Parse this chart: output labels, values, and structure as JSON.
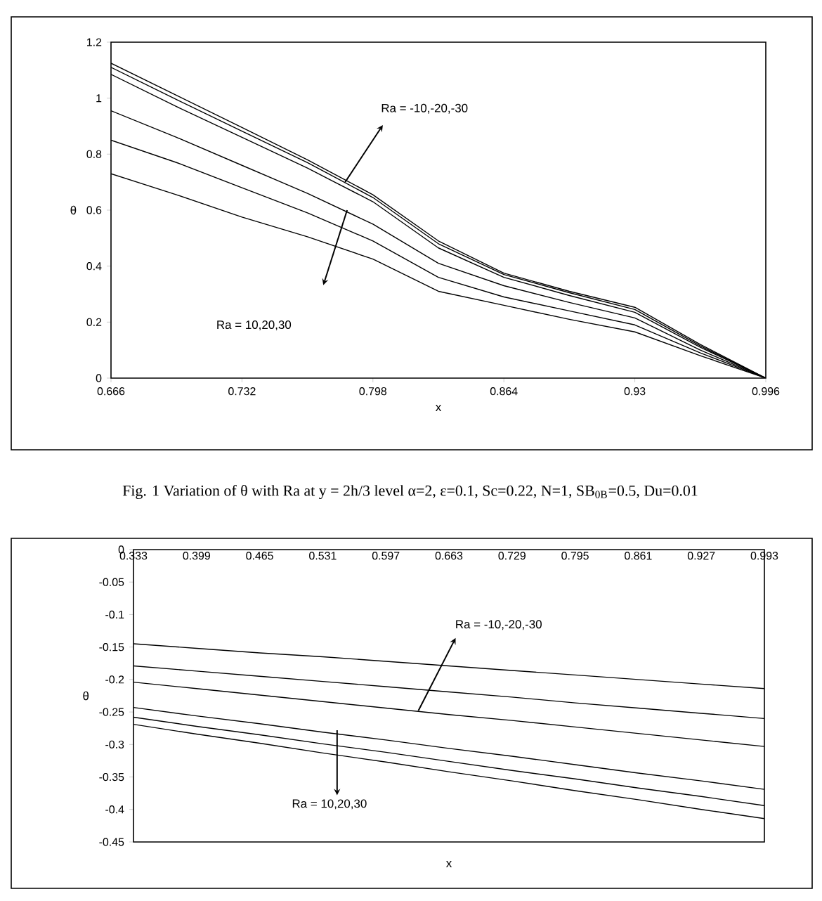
{
  "chart_data": [
    {
      "type": "line",
      "xlabel": "x",
      "ylabel": "θ",
      "x": [
        0.666,
        0.699,
        0.732,
        0.765,
        0.798,
        0.831,
        0.864,
        0.897,
        0.93,
        0.963,
        0.996
      ],
      "xlim": [
        0.666,
        0.996
      ],
      "xticks": [
        0.666,
        0.732,
        0.798,
        0.864,
        0.93,
        0.996
      ],
      "ylim": [
        0,
        1.2
      ],
      "yticks": [
        0,
        0.2,
        0.4,
        0.6,
        0.8,
        1,
        1.2
      ],
      "series": [
        {
          "color": "#000000",
          "values": [
            1.125,
            1.01,
            0.895,
            0.78,
            0.655,
            0.49,
            0.375,
            0.31,
            0.253,
            0.12,
            0
          ]
        },
        {
          "color": "#000000",
          "values": [
            1.11,
            0.995,
            0.882,
            0.77,
            0.645,
            0.48,
            0.37,
            0.305,
            0.245,
            0.115,
            0
          ]
        },
        {
          "color": "#000000",
          "values": [
            1.085,
            0.97,
            0.86,
            0.75,
            0.63,
            0.465,
            0.36,
            0.295,
            0.235,
            0.11,
            0
          ]
        },
        {
          "color": "#000000",
          "values": [
            0.955,
            0.86,
            0.76,
            0.66,
            0.55,
            0.41,
            0.33,
            0.27,
            0.215,
            0.1,
            0
          ]
        },
        {
          "color": "#000000",
          "values": [
            0.85,
            0.77,
            0.68,
            0.59,
            0.49,
            0.36,
            0.29,
            0.24,
            0.19,
            0.09,
            0
          ]
        },
        {
          "color": "#000000",
          "values": [
            0.73,
            0.655,
            0.575,
            0.505,
            0.425,
            0.31,
            0.26,
            0.21,
            0.165,
            0.08,
            0
          ]
        }
      ],
      "annotations": [
        "Fig. 1 Variation of θ with Ra at y = 2h/3 level α=2, ε=0.1, Sc=0.22, N=1, SB$_{0B}$=0.5, Du=0.01",
        {
          "text": "Ra = -10,-20,-30",
          "x": 0.784,
          "y": 0.7
        },
        "Ra = 10,20,30"
      ]
    },
    {
      "type": "line",
      "xlabel": "x",
      "ylabel": "θ",
      "x": [
        0.333,
        0.399,
        0.465,
        0.531,
        0.597,
        0.663,
        0.729,
        0.795,
        0.861,
        0.927,
        0.993
      ],
      "xlim": [
        0.333,
        0.993
      ],
      "xticks": [
        0.333,
        0.399,
        0.465,
        0.531,
        0.597,
        0.663,
        0.729,
        0.795,
        0.861,
        0.927,
        0.993
      ],
      "ylim": [
        -0.45,
        0
      ],
      "yticks": [
        -0.45,
        -0.4,
        -0.35,
        -0.3,
        -0.25,
        -0.2,
        -0.15,
        -0.1,
        -0.05,
        0
      ],
      "series": [
        {
          "color": "#000000",
          "values": [
            -0.145,
            -0.152,
            -0.159,
            -0.165,
            -0.172,
            -0.179,
            -0.186,
            -0.193,
            -0.2,
            -0.207,
            -0.214
          ]
        },
        {
          "color": "#000000",
          "values": [
            -0.179,
            -0.187,
            -0.195,
            -0.203,
            -0.211,
            -0.219,
            -0.227,
            -0.236,
            -0.244,
            -0.252,
            -0.26
          ]
        },
        {
          "color": "#000000",
          "values": [
            -0.204,
            -0.214,
            -0.224,
            -0.234,
            -0.244,
            -0.254,
            -0.263,
            -0.273,
            -0.283,
            -0.293,
            -0.303
          ]
        },
        {
          "color": "#000000",
          "values": [
            -0.243,
            -0.256,
            -0.268,
            -0.281,
            -0.293,
            -0.306,
            -0.318,
            -0.331,
            -0.344,
            -0.356,
            -0.369
          ]
        },
        {
          "color": "#000000",
          "values": [
            -0.258,
            -0.272,
            -0.285,
            -0.299,
            -0.312,
            -0.326,
            -0.34,
            -0.353,
            -0.367,
            -0.38,
            -0.394
          ]
        },
        {
          "color": "#000000",
          "values": [
            -0.269,
            -0.284,
            -0.298,
            -0.313,
            -0.327,
            -0.342,
            -0.356,
            -0.371,
            -0.385,
            -0.4,
            -0.414
          ]
        }
      ],
      "annotations": [
        {
          "text": "Ra = -10,-20,-30",
          "x": 0.631,
          "y": -0.248
        },
        {
          "text": "Ra = 10,20,30",
          "x": 0.546,
          "y": -0.278
        }
      ]
    }
  ]
}
